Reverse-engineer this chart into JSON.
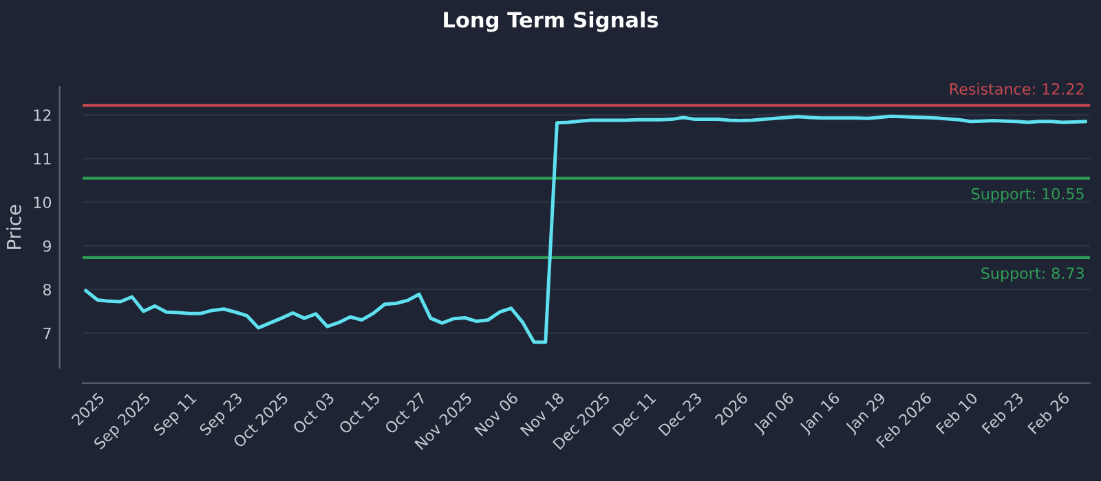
{
  "chart_data": {
    "type": "line",
    "title": "Long Term Signals",
    "ylabel": "Price",
    "categories": [
      null,
      "2025",
      null,
      null,
      null,
      "Sep 2025",
      null,
      null,
      null,
      "Sep 11",
      null,
      null,
      null,
      "Sep 23",
      null,
      null,
      null,
      "Oct 2025",
      null,
      null,
      null,
      "Oct 03",
      null,
      null,
      null,
      "Oct 15",
      null,
      null,
      null,
      "Oct 27",
      null,
      null,
      null,
      "Nov 2025",
      null,
      null,
      null,
      "Nov 06",
      null,
      null,
      null,
      "Nov 18",
      null,
      null,
      null,
      "Dec 2025",
      null,
      null,
      null,
      "Dec 11",
      null,
      null,
      null,
      "Dec 23",
      null,
      null,
      null,
      "2026",
      null,
      null,
      null,
      "Jan 06",
      null,
      null,
      null,
      "Jan 16",
      null,
      null,
      null,
      "Jan 29",
      null,
      null,
      null,
      "Feb 2026",
      null,
      null,
      null,
      "Feb 10",
      null,
      null,
      null,
      "Feb 23",
      null,
      null,
      null,
      "Feb 26",
      null,
      null
    ],
    "series": [
      {
        "color": "#5ee0f0",
        "values": [
          7.97,
          7.76,
          7.73,
          7.72,
          7.83,
          7.5,
          7.62,
          7.48,
          7.47,
          7.45,
          7.45,
          7.52,
          7.55,
          7.48,
          7.4,
          7.12,
          7.23,
          7.34,
          7.46,
          7.34,
          7.44,
          7.15,
          7.24,
          7.37,
          7.3,
          7.45,
          7.66,
          7.68,
          7.75,
          7.89,
          7.34,
          7.23,
          7.33,
          7.35,
          7.27,
          7.3,
          7.48,
          7.57,
          7.25,
          6.79,
          6.79,
          11.82,
          11.83,
          11.86,
          11.88,
          11.88,
          11.88,
          11.88,
          11.89,
          11.89,
          11.89,
          11.9,
          11.94,
          11.9,
          11.9,
          11.9,
          11.88,
          11.87,
          11.88,
          11.9,
          11.92,
          11.94,
          11.96,
          11.94,
          11.93,
          11.93,
          11.93,
          11.93,
          11.92,
          11.94,
          11.97,
          11.96,
          11.95,
          11.94,
          11.93,
          11.91,
          11.89,
          11.85,
          11.86,
          11.87,
          11.86,
          11.85,
          11.83,
          11.85,
          11.85,
          11.83,
          11.84,
          11.85
        ]
      }
    ],
    "ylim": [
      6.2,
      12.65
    ],
    "yticks": [
      7,
      8,
      9,
      10,
      11,
      12
    ],
    "grid": "y",
    "line_style": "solid",
    "marker": "none",
    "ref_lines": [
      {
        "axis": "y",
        "value": 12.22,
        "label": "Resistance: 12.22",
        "color": "#c8474f"
      },
      {
        "axis": "y",
        "value": 10.55,
        "label": "Support: 10.55",
        "color": "#2f9e55"
      },
      {
        "axis": "y",
        "value": 8.73,
        "label": "Support: 8.73",
        "color": "#2f9e55"
      }
    ]
  }
}
